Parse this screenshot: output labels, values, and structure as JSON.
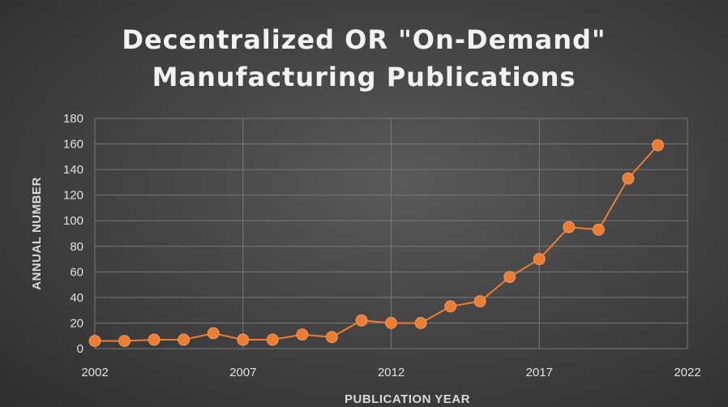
{
  "chart_data": {
    "type": "scatter",
    "title": "Decentralized  OR \"On-Demand\"\nManufacturing  Publications",
    "xlabel": "PUBLICATION  YEAR",
    "ylabel": "ANNUAL NUMBER",
    "xlim": [
      2002,
      2022
    ],
    "ylim": [
      0,
      180
    ],
    "xticks": [
      2002,
      2007,
      2012,
      2017,
      2022
    ],
    "yticks": [
      0,
      20,
      40,
      60,
      80,
      100,
      120,
      140,
      160,
      180
    ],
    "grid": true,
    "legend": "none",
    "series": [
      {
        "x": [
          2002,
          2003,
          2004,
          2005,
          2006,
          2007,
          2008,
          2009,
          2010,
          2011,
          2012,
          2013,
          2014,
          2015,
          2016,
          2017,
          2018,
          2019,
          2020,
          2021
        ],
        "y": [
          6,
          6,
          7,
          7,
          12,
          7,
          7,
          11,
          9,
          22,
          20,
          20,
          33,
          37,
          56,
          70,
          95,
          93,
          133,
          159
        ],
        "color": "#ed7d31"
      }
    ]
  }
}
